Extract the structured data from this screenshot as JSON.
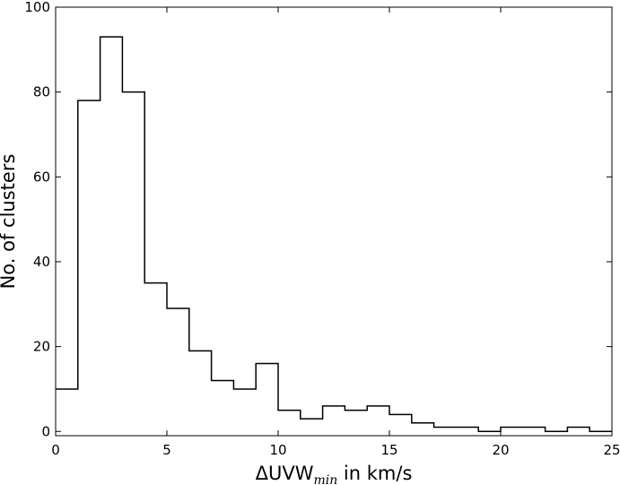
{
  "chart_data": {
    "type": "histogram",
    "title": "",
    "xlabel": {
      "prefix": "ΔUVW",
      "subscript": "min",
      "suffix": " in km/s"
    },
    "ylabel": "No. of clusters",
    "xlim": [
      0,
      25
    ],
    "ylim": [
      -1,
      100
    ],
    "xticks": [
      0,
      5,
      10,
      15,
      20,
      25
    ],
    "yticks": [
      0,
      20,
      40,
      60,
      80,
      100
    ],
    "grid": false,
    "legend": "none",
    "line_color": "#000000",
    "bin_edges": [
      0,
      1,
      2,
      3,
      4,
      5,
      6,
      7,
      8,
      9,
      10,
      11,
      12,
      13,
      14,
      15,
      16,
      17,
      18,
      19,
      20,
      21,
      22,
      23,
      24,
      25
    ],
    "counts": [
      10,
      78,
      93,
      80,
      35,
      29,
      19,
      12,
      10,
      16,
      5,
      3,
      6,
      5,
      6,
      4,
      2,
      1,
      1,
      0,
      1,
      1,
      0,
      1,
      0
    ]
  }
}
